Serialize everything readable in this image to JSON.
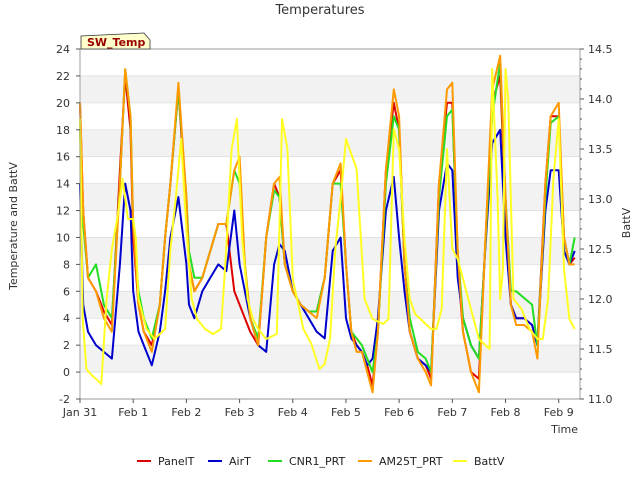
{
  "chart_data": {
    "type": "line",
    "title": "Temperatures",
    "ylabel": "Temperature and BattV",
    "y2label": "BattV",
    "xlabel": "Time",
    "badge": "SW_Temp",
    "ylim": [
      -2,
      24
    ],
    "y2lim": [
      11.0,
      14.5
    ],
    "xlim": [
      0,
      9.4
    ],
    "yticks": [
      -2,
      0,
      2,
      4,
      6,
      8,
      10,
      12,
      14,
      16,
      18,
      20,
      22,
      24
    ],
    "y2ticks": [
      11.0,
      11.5,
      12.0,
      12.5,
      13.0,
      13.5,
      14.0,
      14.5
    ],
    "y2ticklabels": [
      "11.0",
      "11.5",
      "12.0",
      "12.5",
      "13.0",
      "13.5",
      "14.0",
      "14.5"
    ],
    "xticks": [
      0,
      1,
      2,
      3,
      4,
      5,
      6,
      7,
      8,
      9
    ],
    "xticklabels": [
      "Jan 31",
      "Feb 1",
      "Feb 2",
      "Feb 3",
      "Feb 4",
      "Feb 5",
      "Feb 6",
      "Feb 7",
      "Feb 8",
      "Feb 9"
    ],
    "grid": true,
    "legend_position": "bottom",
    "series": [
      {
        "name": "PanelT",
        "color": "#dd0000",
        "axis": "left",
        "x": [
          0,
          0.06,
          0.15,
          0.3,
          0.45,
          0.6,
          0.75,
          0.85,
          0.95,
          1.0,
          1.1,
          1.2,
          1.35,
          1.5,
          1.6,
          1.7,
          1.85,
          2.0,
          2.05,
          2.15,
          2.3,
          2.45,
          2.6,
          2.75,
          2.9,
          3.0,
          3.1,
          3.2,
          3.35,
          3.5,
          3.65,
          3.75,
          3.85,
          4.0,
          4.15,
          4.3,
          4.45,
          4.6,
          4.75,
          4.9,
          5.0,
          5.1,
          5.2,
          5.3,
          5.4,
          5.5,
          5.6,
          5.75,
          5.9,
          6.0,
          6.1,
          6.2,
          6.35,
          6.5,
          6.6,
          6.75,
          6.9,
          7.0,
          7.1,
          7.2,
          7.35,
          7.5,
          7.6,
          7.75,
          7.9,
          8.0,
          8.1,
          8.2,
          8.35,
          8.5,
          8.6,
          8.75,
          8.85,
          9.0,
          9.1,
          9.2,
          9.3
        ],
        "y": [
          20,
          12,
          7,
          6,
          4.5,
          3.5,
          15,
          22,
          18,
          10,
          5,
          3,
          2,
          5,
          10,
          14,
          21,
          12,
          8,
          6,
          7,
          9,
          11,
          11,
          6,
          5,
          4,
          3,
          2,
          10,
          14,
          13,
          8,
          6,
          5,
          4.5,
          4.5,
          7,
          14,
          15,
          8,
          3,
          2,
          1.5,
          0.5,
          -1,
          3,
          15,
          20,
          18,
          8,
          3,
          1,
          0.5,
          -0.5,
          14,
          20,
          20,
          8,
          3,
          0,
          -0.5,
          8,
          20,
          22,
          12,
          5,
          4,
          4,
          3.5,
          2,
          14,
          19,
          19,
          10,
          8,
          8.5
        ]
      },
      {
        "name": "AirT",
        "color": "#0000cc",
        "axis": "left",
        "x": [
          0,
          0.06,
          0.15,
          0.3,
          0.45,
          0.6,
          0.75,
          0.85,
          0.95,
          1.0,
          1.1,
          1.2,
          1.35,
          1.5,
          1.6,
          1.7,
          1.85,
          2.0,
          2.05,
          2.15,
          2.3,
          2.45,
          2.6,
          2.75,
          2.9,
          3.0,
          3.1,
          3.2,
          3.35,
          3.5,
          3.65,
          3.75,
          3.85,
          4.0,
          4.15,
          4.3,
          4.45,
          4.6,
          4.75,
          4.9,
          5.0,
          5.1,
          5.2,
          5.3,
          5.4,
          5.5,
          5.6,
          5.75,
          5.9,
          6.0,
          6.1,
          6.2,
          6.35,
          6.5,
          6.6,
          6.75,
          6.9,
          7.0,
          7.1,
          7.2,
          7.35,
          7.5,
          7.6,
          7.75,
          7.9,
          8.0,
          8.1,
          8.2,
          8.35,
          8.5,
          8.6,
          8.75,
          8.85,
          9.0,
          9.1,
          9.2,
          9.3
        ],
        "y": [
          14,
          5,
          3,
          2,
          1.5,
          1,
          8,
          14,
          12,
          6,
          3,
          2,
          0.5,
          3,
          6,
          10,
          13,
          8,
          5,
          4,
          6,
          7,
          8,
          7.5,
          12,
          8,
          6,
          4,
          2,
          1.5,
          8,
          9.5,
          9,
          6,
          5,
          4,
          3,
          2.5,
          9,
          10,
          4,
          2.5,
          2,
          1.5,
          0.5,
          1,
          4,
          12,
          14.5,
          10,
          6,
          3,
          1,
          0.5,
          0,
          12,
          15.5,
          15,
          7,
          4,
          2,
          1,
          8,
          17,
          18,
          10,
          5,
          4,
          4,
          3.5,
          2,
          12,
          15,
          15,
          9,
          8,
          9
        ]
      },
      {
        "name": "CNR1_PRT",
        "color": "#22dd22",
        "axis": "left",
        "x": [
          0,
          0.06,
          0.15,
          0.3,
          0.45,
          0.6,
          0.75,
          0.85,
          0.95,
          1.0,
          1.1,
          1.2,
          1.35,
          1.5,
          1.6,
          1.7,
          1.85,
          2.0,
          2.05,
          2.15,
          2.3,
          2.45,
          2.6,
          2.75,
          2.9,
          3.0,
          3.1,
          3.2,
          3.35,
          3.5,
          3.65,
          3.75,
          3.85,
          4.0,
          4.15,
          4.3,
          4.45,
          4.6,
          4.75,
          4.9,
          5.0,
          5.1,
          5.2,
          5.3,
          5.4,
          5.5,
          5.6,
          5.75,
          5.9,
          6.0,
          6.1,
          6.2,
          6.35,
          6.5,
          6.6,
          6.75,
          6.9,
          7.0,
          7.1,
          7.2,
          7.35,
          7.5,
          7.6,
          7.75,
          7.9,
          8.0,
          8.1,
          8.2,
          8.35,
          8.5,
          8.6,
          8.75,
          8.85,
          9.0,
          9.1,
          9.2,
          9.3
        ],
        "y": [
          18,
          11,
          7,
          8,
          5,
          4,
          14,
          22.5,
          19,
          11,
          6,
          4,
          2.5,
          5,
          10,
          14,
          21,
          13,
          9,
          7,
          7,
          9,
          11,
          11,
          15,
          14,
          8,
          4,
          2.5,
          10,
          13.5,
          13,
          8,
          6,
          5,
          4.5,
          4.5,
          7,
          14,
          14,
          8,
          3,
          2.5,
          2,
          1,
          0,
          3,
          14,
          19,
          18,
          8,
          4,
          1.5,
          1,
          0,
          13,
          19,
          19.5,
          9,
          4,
          2,
          1,
          8,
          19,
          23,
          13,
          6,
          6,
          5.5,
          5,
          2,
          13,
          18.5,
          19,
          10,
          8,
          10
        ]
      },
      {
        "name": "AM25T_PRT",
        "color": "#ff9900",
        "axis": "left",
        "x": [
          0,
          0.06,
          0.15,
          0.3,
          0.45,
          0.6,
          0.75,
          0.85,
          0.95,
          1.0,
          1.1,
          1.2,
          1.35,
          1.5,
          1.6,
          1.7,
          1.85,
          2.0,
          2.05,
          2.15,
          2.3,
          2.45,
          2.6,
          2.75,
          2.9,
          3.0,
          3.1,
          3.2,
          3.35,
          3.5,
          3.65,
          3.75,
          3.85,
          4.0,
          4.15,
          4.3,
          4.45,
          4.6,
          4.75,
          4.9,
          5.0,
          5.1,
          5.2,
          5.3,
          5.4,
          5.5,
          5.6,
          5.75,
          5.9,
          6.0,
          6.1,
          6.2,
          6.35,
          6.5,
          6.6,
          6.75,
          6.9,
          7.0,
          7.1,
          7.2,
          7.35,
          7.5,
          7.6,
          7.75,
          7.9,
          8.0,
          8.1,
          8.2,
          8.35,
          8.5,
          8.6,
          8.75,
          8.85,
          9.0,
          9.1,
          9.2,
          9.3
        ],
        "y": [
          20,
          12,
          7,
          6,
          4,
          3,
          14,
          22.5,
          19,
          11,
          5,
          3,
          1.5,
          5,
          10,
          14,
          21.5,
          13,
          8,
          6,
          7,
          9,
          11,
          11,
          15,
          16,
          8,
          4,
          2,
          10,
          14,
          14.5,
          8,
          6,
          5,
          4.5,
          4,
          7,
          14,
          15.5,
          8,
          3,
          1.5,
          1.5,
          0,
          -1.5,
          3,
          15,
          21,
          19,
          8,
          3,
          1,
          0,
          -1,
          14,
          21,
          21.5,
          9,
          3,
          0,
          -1.5,
          8,
          21,
          23.5,
          13,
          5,
          3.5,
          3.5,
          3,
          1,
          14,
          19,
          20,
          10,
          8,
          8
        ]
      },
      {
        "name": "BattV",
        "color": "#ffff22",
        "axis": "right",
        "x": [
          0,
          0.05,
          0.12,
          0.2,
          0.3,
          0.4,
          0.5,
          0.6,
          0.7,
          0.8,
          0.9,
          1.0,
          1.05,
          1.1,
          1.25,
          1.4,
          1.5,
          1.6,
          1.7,
          1.8,
          1.9,
          2.0,
          2.1,
          2.2,
          2.35,
          2.5,
          2.65,
          2.75,
          2.85,
          2.95,
          3.05,
          3.15,
          3.25,
          3.35,
          3.5,
          3.7,
          3.8,
          3.9,
          4.0,
          4.2,
          4.35,
          4.5,
          4.6,
          4.7,
          4.8,
          4.9,
          5.0,
          5.2,
          5.35,
          5.5,
          5.7,
          5.8,
          5.9,
          6.0,
          6.1,
          6.2,
          6.3,
          6.4,
          6.5,
          6.6,
          6.7,
          6.8,
          6.9,
          7.0,
          7.1,
          7.3,
          7.5,
          7.7,
          7.75,
          7.85,
          7.9,
          7.95,
          8.0,
          8.05,
          8.15,
          8.3,
          8.45,
          8.6,
          8.7,
          8.8,
          8.9,
          9.0,
          9.1,
          9.2,
          9.3
        ],
        "y": [
          13.8,
          11.8,
          11.3,
          11.25,
          11.2,
          11.15,
          12.0,
          12.5,
          12.8,
          13.2,
          12.8,
          12.8,
          12.6,
          12.0,
          11.7,
          11.6,
          11.65,
          11.7,
          12.5,
          13.0,
          13.6,
          12.7,
          12.0,
          11.8,
          11.7,
          11.65,
          11.7,
          12.5,
          13.5,
          13.8,
          12.6,
          12.0,
          11.8,
          11.7,
          11.6,
          11.65,
          13.8,
          13.5,
          12.2,
          11.7,
          11.55,
          11.3,
          11.35,
          11.6,
          12.5,
          13.0,
          13.6,
          13.3,
          12.0,
          11.8,
          11.75,
          11.8,
          13.7,
          13.5,
          12.6,
          12.0,
          11.85,
          11.8,
          11.75,
          11.7,
          11.7,
          11.9,
          13.5,
          12.5,
          12.4,
          12.0,
          11.6,
          11.5,
          14.3,
          13.0,
          12.0,
          12.3,
          14.3,
          14.0,
          12.0,
          11.9,
          11.7,
          11.6,
          11.6,
          12.0,
          13.2,
          13.8,
          12.3,
          11.8,
          11.7
        ]
      }
    ]
  }
}
